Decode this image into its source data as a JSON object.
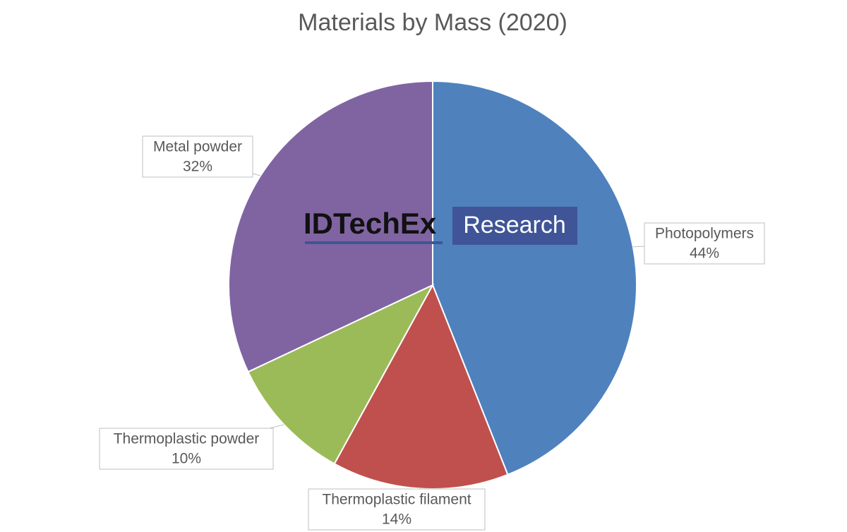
{
  "chart_data": {
    "type": "pie",
    "title": "Materials by Mass (2020)",
    "categories": [
      "Photopolymers",
      "Thermoplastic filament",
      "Thermoplastic powder",
      "Metal powder"
    ],
    "values": [
      44,
      14,
      10,
      32
    ],
    "value_labels": [
      "44%",
      "14%",
      "10%",
      "32%"
    ],
    "colors": [
      "#4f81bd",
      "#c0504d",
      "#9bbb59",
      "#8064a2"
    ]
  },
  "watermark": {
    "brand": "IDTechEx",
    "tag": "Research"
  }
}
